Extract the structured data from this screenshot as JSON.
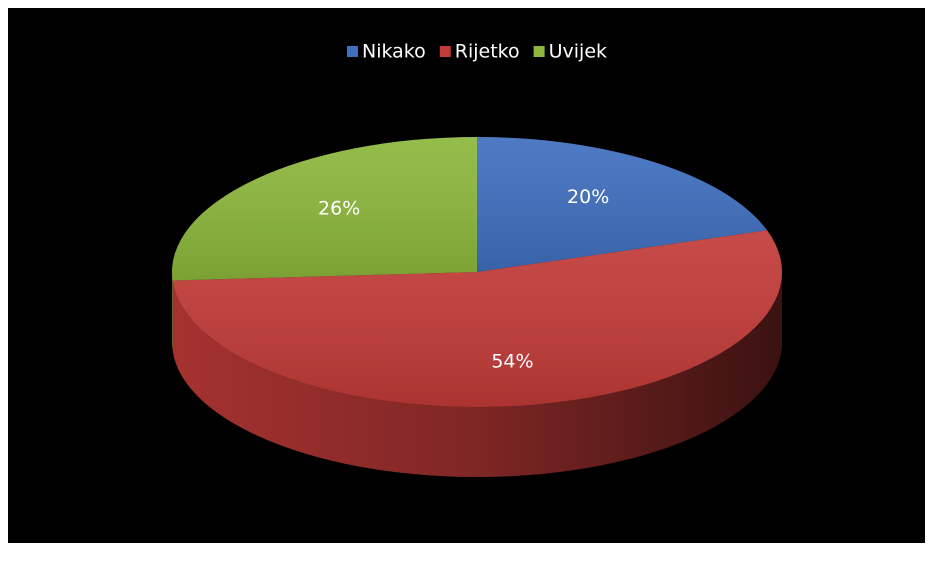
{
  "chart_data": {
    "type": "pie",
    "categories": [
      "Nikako",
      "Rijetko",
      "Uvijek"
    ],
    "values": [
      20,
      54,
      26
    ],
    "value_labels": [
      "20%",
      "54%",
      "26%"
    ],
    "colors": [
      "#3f6fbf",
      "#c23b38",
      "#8cb73c"
    ],
    "legend": "top"
  }
}
